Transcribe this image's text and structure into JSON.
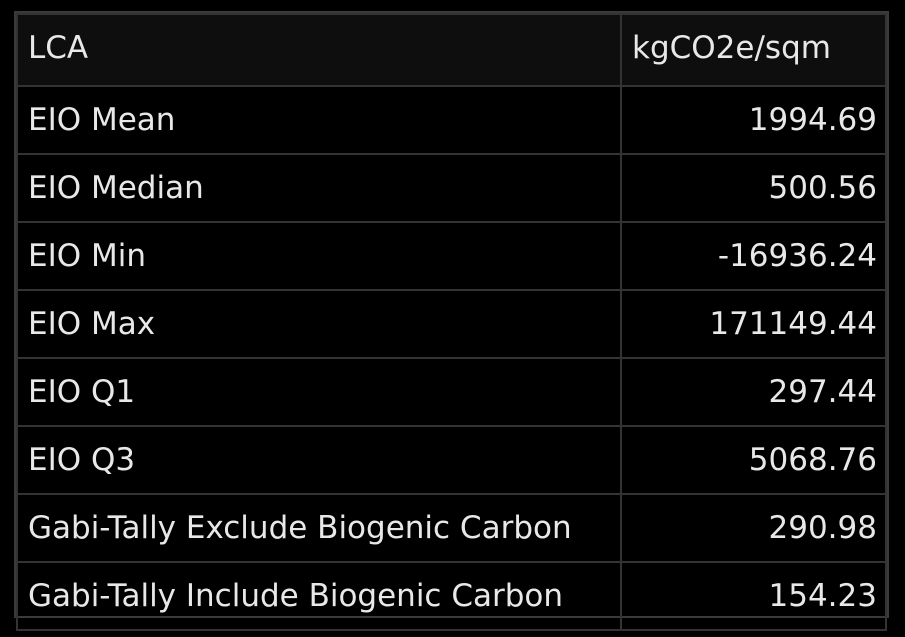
{
  "table": {
    "headers": [
      "LCA",
      "kgCO2e/sqm"
    ],
    "rows": [
      {
        "label": "EIO Mean",
        "value": "1994.69"
      },
      {
        "label": "EIO Median",
        "value": "500.56"
      },
      {
        "label": "EIO Min",
        "value": "-16936.24"
      },
      {
        "label": "EIO Max",
        "value": "171149.44"
      },
      {
        "label": "EIO Q1",
        "value": "297.44"
      },
      {
        "label": "EIO Q3",
        "value": "5068.76"
      },
      {
        "label": "Gabi-Tally Exclude Biogenic Carbon",
        "value": "290.98"
      },
      {
        "label": "Gabi-Tally Include Biogenic Carbon",
        "value": "154.23"
      }
    ]
  }
}
